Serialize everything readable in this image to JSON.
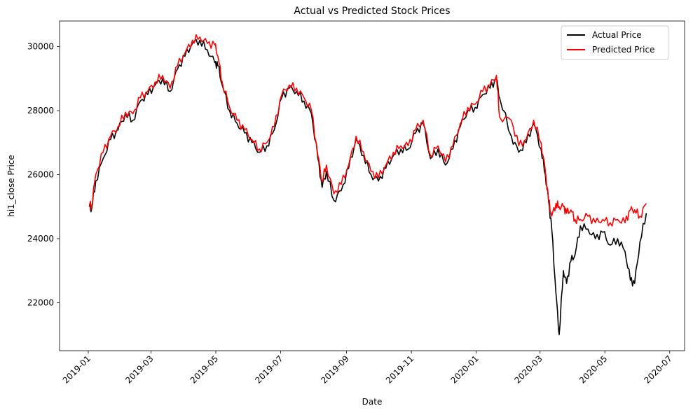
{
  "chart_data": {
    "type": "line",
    "title": "Actual vs Predicted Stock Prices",
    "xlabel": "Date",
    "ylabel": "hi1_close Price",
    "x_type": "date",
    "xlim": [
      "2018-12-05",
      "2020-07-15"
    ],
    "ylim": [
      20500,
      30800
    ],
    "x_ticks": [
      "2019-01",
      "2019-03",
      "2019-05",
      "2019-07",
      "2019-09",
      "2019-11",
      "2020-01",
      "2020-03",
      "2020-05",
      "2020-07"
    ],
    "y_ticks": [
      22000,
      24000,
      26000,
      28000,
      30000
    ],
    "y_tick_labels": [
      "22000",
      "24000",
      "26000",
      "28000",
      "30000"
    ],
    "grid": false,
    "legend": {
      "placement": "top-right"
    },
    "series": [
      {
        "name": "Actual Price",
        "color": "#000000",
        "x": [
          "2019-01-02",
          "2019-01-04",
          "2019-01-08",
          "2019-01-15",
          "2019-01-22",
          "2019-01-29",
          "2019-02-05",
          "2019-02-12",
          "2019-02-19",
          "2019-02-26",
          "2019-03-05",
          "2019-03-12",
          "2019-03-19",
          "2019-03-26",
          "2019-04-02",
          "2019-04-09",
          "2019-04-16",
          "2019-04-23",
          "2019-04-30",
          "2019-05-03",
          "2019-05-07",
          "2019-05-14",
          "2019-05-21",
          "2019-05-28",
          "2019-06-04",
          "2019-06-11",
          "2019-06-18",
          "2019-06-25",
          "2019-07-02",
          "2019-07-09",
          "2019-07-16",
          "2019-07-23",
          "2019-07-30",
          "2019-08-05",
          "2019-08-09",
          "2019-08-13",
          "2019-08-20",
          "2019-08-27",
          "2019-09-03",
          "2019-09-10",
          "2019-09-17",
          "2019-09-24",
          "2019-10-01",
          "2019-10-08",
          "2019-10-15",
          "2019-10-22",
          "2019-10-29",
          "2019-11-05",
          "2019-11-12",
          "2019-11-19",
          "2019-11-26",
          "2019-12-03",
          "2019-12-10",
          "2019-12-17",
          "2019-12-24",
          "2019-12-31",
          "2020-01-07",
          "2020-01-14",
          "2020-01-20",
          "2020-01-23",
          "2020-02-03",
          "2020-02-10",
          "2020-02-17",
          "2020-02-24",
          "2020-03-02",
          "2020-03-06",
          "2020-03-09",
          "2020-03-12",
          "2020-03-16",
          "2020-03-19",
          "2020-03-23",
          "2020-03-26",
          "2020-03-30",
          "2020-04-03",
          "2020-04-08",
          "2020-04-15",
          "2020-04-22",
          "2020-04-29",
          "2020-05-06",
          "2020-05-13",
          "2020-05-20",
          "2020-05-25",
          "2020-05-29",
          "2020-06-03",
          "2020-06-09"
        ],
        "values": [
          25000,
          24900,
          25800,
          26500,
          27100,
          27400,
          27900,
          27700,
          28300,
          28500,
          28800,
          29000,
          28600,
          29300,
          29700,
          30100,
          30200,
          29900,
          29500,
          29400,
          28800,
          28000,
          27600,
          27300,
          27000,
          26700,
          26900,
          27400,
          28400,
          28700,
          28600,
          28300,
          27900,
          26500,
          25600,
          26100,
          25200,
          25500,
          26200,
          27100,
          26600,
          26000,
          25800,
          26200,
          26600,
          26800,
          26800,
          27300,
          27600,
          26500,
          26800,
          26300,
          26800,
          27500,
          28000,
          28100,
          28500,
          28700,
          29000,
          28400,
          27200,
          26700,
          27000,
          27600,
          26800,
          26000,
          25200,
          24300,
          22300,
          21000,
          23000,
          22600,
          23300,
          23500,
          24400,
          24300,
          24000,
          24200,
          23800,
          24000,
          23600,
          22700,
          22600,
          23900,
          24800
        ]
      },
      {
        "name": "Predicted Price",
        "color": "#ff0000",
        "x": [
          "2019-01-02",
          "2019-01-04",
          "2019-01-08",
          "2019-01-15",
          "2019-01-22",
          "2019-01-29",
          "2019-02-05",
          "2019-02-12",
          "2019-02-19",
          "2019-02-26",
          "2019-03-05",
          "2019-03-12",
          "2019-03-19",
          "2019-03-26",
          "2019-04-02",
          "2019-04-09",
          "2019-04-16",
          "2019-04-23",
          "2019-04-30",
          "2019-05-03",
          "2019-05-07",
          "2019-05-14",
          "2019-05-21",
          "2019-05-28",
          "2019-06-04",
          "2019-06-11",
          "2019-06-18",
          "2019-06-25",
          "2019-07-02",
          "2019-07-09",
          "2019-07-16",
          "2019-07-23",
          "2019-07-30",
          "2019-08-05",
          "2019-08-09",
          "2019-08-13",
          "2019-08-20",
          "2019-08-27",
          "2019-09-03",
          "2019-09-10",
          "2019-09-17",
          "2019-09-24",
          "2019-10-01",
          "2019-10-08",
          "2019-10-15",
          "2019-10-22",
          "2019-10-29",
          "2019-11-05",
          "2019-11-12",
          "2019-11-19",
          "2019-11-26",
          "2019-12-03",
          "2019-12-10",
          "2019-12-17",
          "2019-12-24",
          "2019-12-31",
          "2020-01-07",
          "2020-01-14",
          "2020-01-20",
          "2020-01-23",
          "2020-02-03",
          "2020-02-10",
          "2020-02-17",
          "2020-02-24",
          "2020-03-02",
          "2020-03-06",
          "2020-03-09",
          "2020-03-12",
          "2020-03-16",
          "2020-03-19",
          "2020-03-23",
          "2020-03-26",
          "2020-03-30",
          "2020-04-03",
          "2020-04-08",
          "2020-04-15",
          "2020-04-22",
          "2020-04-29",
          "2020-05-06",
          "2020-05-13",
          "2020-05-20",
          "2020-05-25",
          "2020-05-29",
          "2020-06-03",
          "2020-06-09"
        ],
        "values": [
          25100,
          25000,
          26000,
          26700,
          27200,
          27500,
          27950,
          27900,
          28400,
          28600,
          28900,
          29100,
          28700,
          29400,
          29800,
          30200,
          30300,
          30100,
          30050,
          29700,
          28900,
          28100,
          27700,
          27400,
          27100,
          26800,
          27000,
          27500,
          28500,
          28800,
          28700,
          28400,
          28000,
          26600,
          25800,
          26300,
          25400,
          25700,
          26300,
          27200,
          26700,
          26100,
          25900,
          26300,
          26700,
          26900,
          26900,
          27400,
          27700,
          26600,
          26900,
          26400,
          26900,
          27600,
          28100,
          28200,
          28600,
          28800,
          29100,
          27800,
          27700,
          26900,
          27100,
          27700,
          27000,
          26100,
          25200,
          24700,
          25100,
          25000,
          25000,
          24800,
          24900,
          24600,
          24600,
          24700,
          24500,
          24600,
          24500,
          24600,
          24500,
          24900,
          24900,
          24700,
          25100
        ]
      }
    ]
  }
}
